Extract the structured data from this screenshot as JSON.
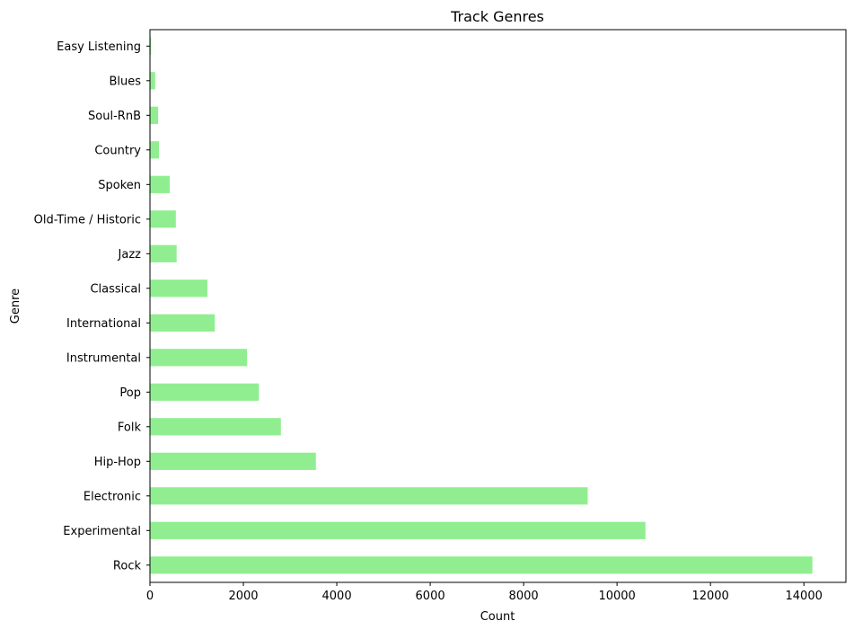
{
  "chart_data": {
    "type": "bar",
    "orientation": "horizontal",
    "title": "Track Genres",
    "xlabel": "Count",
    "ylabel": "Genre",
    "categories": [
      "Rock",
      "Experimental",
      "Electronic",
      "Hip-Hop",
      "Folk",
      "Pop",
      "Instrumental",
      "International",
      "Classical",
      "Jazz",
      "Old-Time / Historic",
      "Spoken",
      "Country",
      "Soul-RnB",
      "Blues",
      "Easy Listening"
    ],
    "values": [
      14182,
      10608,
      9372,
      3552,
      2803,
      2332,
      2079,
      1389,
      1230,
      571,
      554,
      423,
      194,
      175,
      110,
      24
    ],
    "xlim": [
      0,
      14900
    ],
    "xticks": [
      0,
      2000,
      4000,
      6000,
      8000,
      10000,
      12000,
      14000
    ],
    "grid": false,
    "bar_color": "#90ee90"
  }
}
